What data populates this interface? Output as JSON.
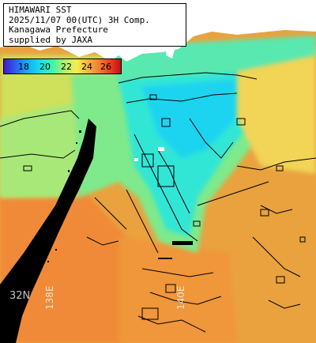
{
  "header": {
    "line1": "HIMAWARI SST",
    "line2": "2025/11/07 00(UTC) 3H Comp.",
    "line3": "Kanagawa Prefecture",
    "line4": "supplied by JAXA"
  },
  "legend": {
    "ticks": [
      "18",
      "20",
      "22",
      "24",
      "26"
    ]
  },
  "grid_labels": {
    "lat": "32N",
    "lon": "138E",
    "lon2": "140E"
  },
  "colors": {
    "land": "#ffffff",
    "no_data": "#000000",
    "warm_sea": "#e9a23e",
    "cool_sea": "#22e0e6",
    "contour": "#000000"
  }
}
